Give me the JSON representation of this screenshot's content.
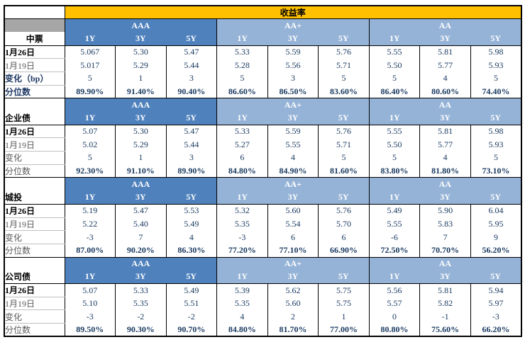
{
  "table": {
    "title": "收益率",
    "ratings": [
      "AAA",
      "AA+",
      "AA"
    ],
    "tenors": [
      "1Y",
      "3Y",
      "5Y"
    ],
    "row_kinds": [
      "date_current",
      "date_previous",
      "change",
      "percentile"
    ],
    "sections": [
      {
        "name": "中票",
        "row_labels": [
          "1月26日",
          "1月19日",
          "变化（bp）",
          "分位数"
        ],
        "rows": [
          [
            "5.067",
            "5.30",
            "5.47",
            "5.33",
            "5.59",
            "5.76",
            "5.55",
            "5.81",
            "5.98"
          ],
          [
            "5.017",
            "5.29",
            "5.44",
            "5.28",
            "5.56",
            "5.71",
            "5.50",
            "5.77",
            "5.93"
          ],
          [
            "5",
            "1",
            "3",
            "5",
            "3",
            "5",
            "5",
            "4",
            "5"
          ],
          [
            "89.90%",
            "91.40%",
            "90.40%",
            "86.60%",
            "86.50%",
            "83.60%",
            "86.40%",
            "80.60%",
            "74.40%"
          ]
        ],
        "bold_labels": true,
        "gray_band": true,
        "name_centered": true
      },
      {
        "name": "企业债",
        "row_labels": [
          "1月26日",
          "1月19日",
          "变化",
          "分位数"
        ],
        "rows": [
          [
            "5.07",
            "5.30",
            "5.47",
            "5.33",
            "5.59",
            "5.76",
            "5.55",
            "5.81",
            "5.98"
          ],
          [
            "5.02",
            "5.29",
            "5.44",
            "5.27",
            "5.55",
            "5.71",
            "5.50",
            "5.77",
            "5.93"
          ],
          [
            "5",
            "1",
            "3",
            "6",
            "4",
            "5",
            "5",
            "4",
            "5"
          ],
          [
            "92.30%",
            "91.10%",
            "89.90%",
            "84.80%",
            "84.90%",
            "81.60%",
            "83.80%",
            "81.80%",
            "73.10%"
          ]
        ],
        "bold_labels": false,
        "gray_band": false,
        "name_centered": false
      },
      {
        "name": "城投",
        "row_labels": [
          "1月26日",
          "1月19日",
          "变化",
          "分位数"
        ],
        "rows": [
          [
            "5.19",
            "5.47",
            "5.53",
            "5.32",
            "5.60",
            "5.76",
            "5.49",
            "5.90",
            "6.04"
          ],
          [
            "5.22",
            "5.40",
            "5.49",
            "5.35",
            "5.54",
            "5.70",
            "5.55",
            "5.83",
            "5.95"
          ],
          [
            "-3",
            "7",
            "4",
            "-3",
            "6",
            "6",
            "-6",
            "7",
            "9"
          ],
          [
            "87.00%",
            "90.20%",
            "86.30%",
            "77.20%",
            "77.10%",
            "66.90%",
            "72.50%",
            "70.70%",
            "56.20%"
          ]
        ],
        "bold_labels": false,
        "gray_band": false,
        "name_centered": false
      },
      {
        "name": "公司债",
        "row_labels": [
          "1月26日",
          "1月19日",
          "变化",
          "分位数"
        ],
        "rows": [
          [
            "5.07",
            "5.33",
            "5.49",
            "5.39",
            "5.62",
            "5.75",
            "5.56",
            "5.81",
            "5.94"
          ],
          [
            "5.10",
            "5.35",
            "5.51",
            "5.35",
            "5.60",
            "5.75",
            "5.57",
            "5.82",
            "5.97"
          ],
          [
            "-3",
            "-2",
            "-2",
            "4",
            "2",
            "1",
            "0",
            "-1",
            "-3"
          ],
          [
            "89.50%",
            "90.30%",
            "90.70%",
            "84.80%",
            "81.70%",
            "77.00%",
            "80.80%",
            "75.60%",
            "66.20%"
          ]
        ],
        "bold_labels": false,
        "gray_band": false,
        "name_centered": false
      }
    ]
  },
  "colors": {
    "title_bg": "#FFC000",
    "rating_aaa_bg": "#4F81BD",
    "rating_aa_bg": "#95B3D7",
    "gray_band": "#A6A6A6",
    "value_text": "#17375E",
    "border": "#000000"
  }
}
